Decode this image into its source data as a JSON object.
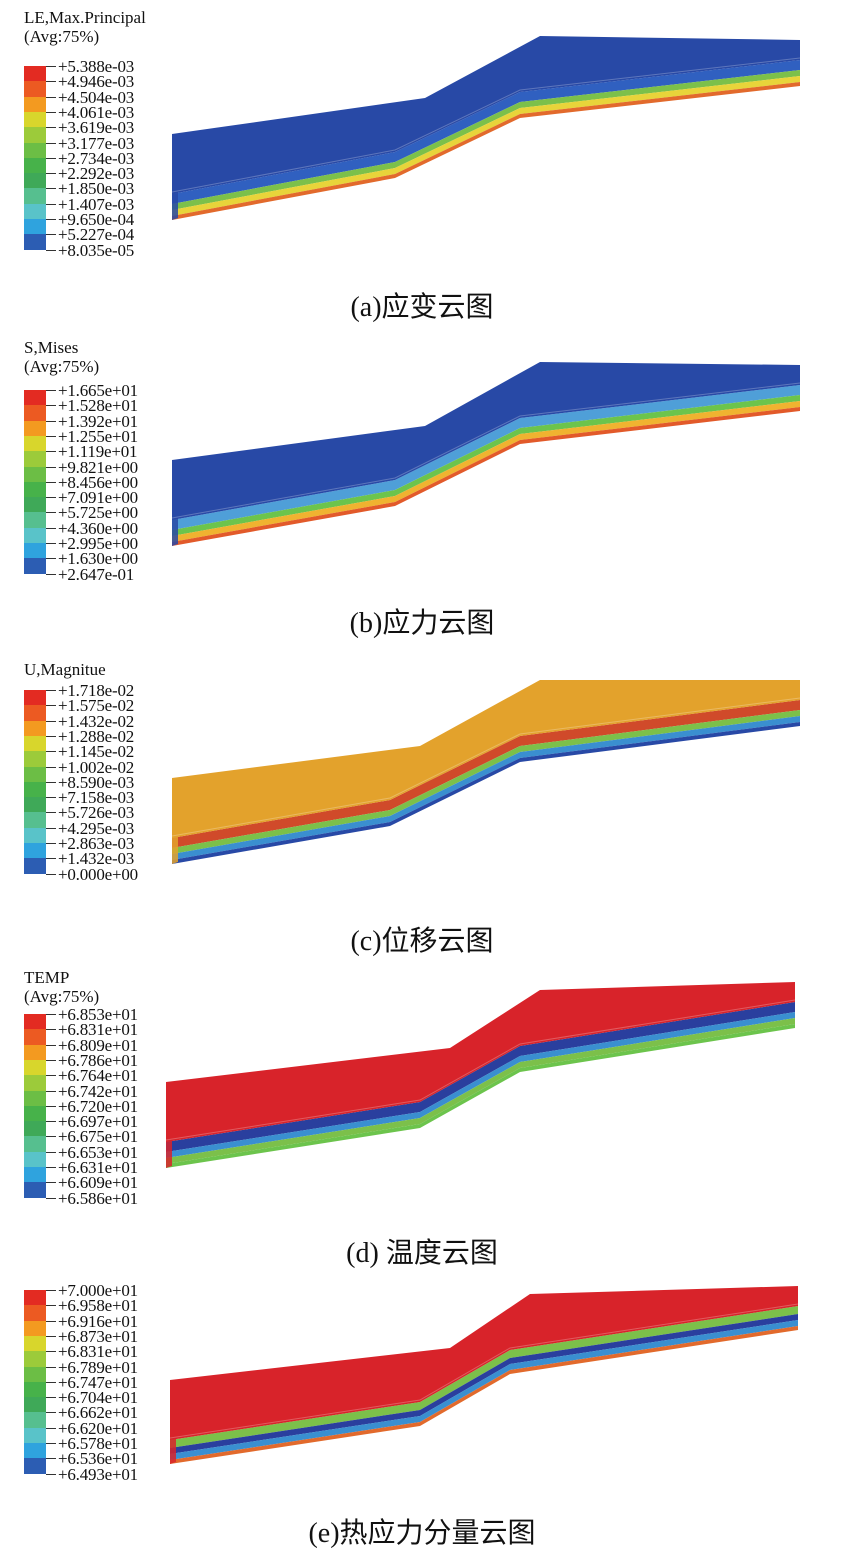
{
  "panels": [
    {
      "id": "a",
      "title_lines": [
        "LE,Max.Principal",
        "(Avg:75%)"
      ],
      "legend_values": [
        "+5.388e-03",
        "+4.946e-03",
        "+4.504e-03",
        "+4.061e-03",
        "+3.619e-03",
        "+3.177e-03",
        "+2.734e-03",
        "+2.292e-03",
        "+1.850e-03",
        "+1.407e-03",
        "+9.650e-04",
        "+5.227e-04",
        "+8.035e-05"
      ],
      "caption": "(a)应变云图",
      "top_color": "#2849a6",
      "layer_colors": [
        "#3060c0",
        "#7cc04a",
        "#e8d43a",
        "#e26a2c"
      ]
    },
    {
      "id": "b",
      "title_lines": [
        "S,Mises",
        "(Avg:75%)"
      ],
      "legend_values": [
        "+1.665e+01",
        "+1.528e+01",
        "+1.392e+01",
        "+1.255e+01",
        "+1.119e+01",
        "+9.821e+00",
        "+8.456e+00",
        "+7.091e+00",
        "+5.725e+00",
        "+4.360e+00",
        "+2.995e+00",
        "+1.630e+00",
        "+2.647e-01"
      ],
      "caption": "(b)应力云图",
      "top_color": "#2849a6",
      "layer_colors": [
        "#4f9fd8",
        "#6cc44c",
        "#f0b330",
        "#e25a2a"
      ]
    },
    {
      "id": "c",
      "title_lines": [
        "U,Magnitue"
      ],
      "legend_values": [
        "+1.718e-02",
        "+1.575e-02",
        "+1.432e-02",
        "+1.288e-02",
        "+1.145e-02",
        "+1.002e-02",
        "+8.590e-03",
        "+7.158e-03",
        "+5.726e-03",
        "+4.295e-03",
        "+2.863e-03",
        "+1.432e-03",
        "+0.000e+00"
      ],
      "caption": "(c)位移云图",
      "top_color": "#e3a22c",
      "layer_colors": [
        "#d04a2a",
        "#7cc04a",
        "#3a8fd0",
        "#2849a6"
      ]
    },
    {
      "id": "d",
      "title_lines": [
        "TEMP",
        "(Avg:75%)"
      ],
      "legend_values": [
        "+6.853e+01",
        "+6.831e+01",
        "+6.809e+01",
        "+6.786e+01",
        "+6.764e+01",
        "+6.742e+01",
        "+6.720e+01",
        "+6.697e+01",
        "+6.675e+01",
        "+6.653e+01",
        "+6.631e+01",
        "+6.609e+01",
        "+6.586e+01"
      ],
      "caption": "(d) 温度云图",
      "top_color": "#d8232a",
      "layer_colors": [
        "#2a3f9e",
        "#3a8fd0",
        "#7cc04a",
        "#6cc44c"
      ]
    },
    {
      "id": "e",
      "title_lines": [],
      "legend_values": [
        "+7.000e+01",
        "+6.958e+01",
        "+6.916e+01",
        "+6.873e+01",
        "+6.831e+01",
        "+6.789e+01",
        "+6.747e+01",
        "+6.704e+01",
        "+6.662e+01",
        "+6.620e+01",
        "+6.578e+01",
        "+6.536e+01",
        "+6.493e+01"
      ],
      "caption": "(e)热应力分量云图",
      "top_color": "#d8232a",
      "layer_colors": [
        "#7cc04a",
        "#2a3f9e",
        "#3a8fd0",
        "#e26a2c"
      ]
    }
  ],
  "legend_colors": [
    "#e32b22",
    "#ec5a22",
    "#f39a20",
    "#d8d62c",
    "#9ccb3a",
    "#6cbe45",
    "#47b24a",
    "#3fa958",
    "#56bf8f",
    "#59c3c9",
    "#2fa3de",
    "#2c5db3",
    "#2a3f9e"
  ]
}
